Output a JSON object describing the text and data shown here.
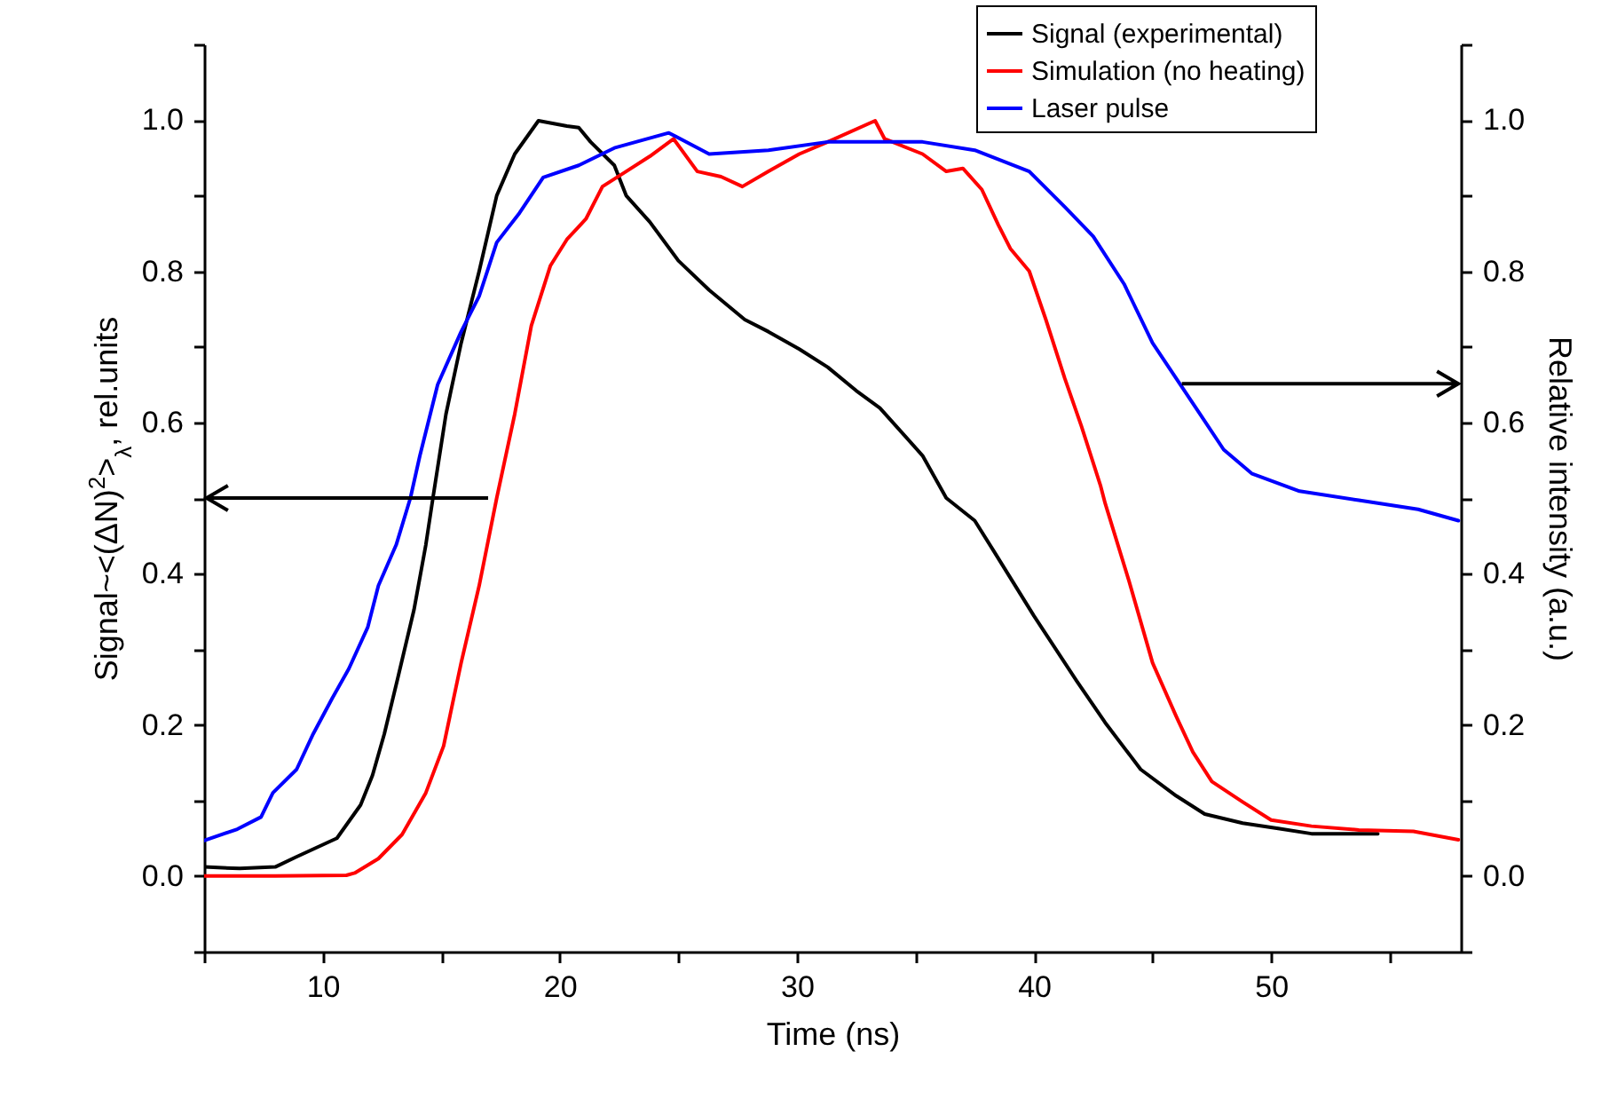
{
  "chart_data": {
    "type": "line",
    "xlabel": "Time (ns)",
    "ylabel": "Signal~<(ΔN)$^{2}$>$_{λ}$, rel.units",
    "y2label": "Relative intensity (a.u.)",
    "xlim": [
      5,
      58
    ],
    "xticks": [
      {
        "value": 5,
        "label": null
      },
      10,
      {
        "value": 15,
        "label": null
      },
      20,
      {
        "value": 25,
        "label": null
      },
      30,
      {
        "value": 35,
        "label": null
      },
      40,
      {
        "value": 45,
        "label": null
      },
      50,
      {
        "value": 55,
        "label": null
      }
    ],
    "ylim": [
      -0.1,
      1.1
    ],
    "yticks": [
      {
        "value": -0.1,
        "label": null
      },
      {
        "value": 0,
        "label": "0.0"
      },
      {
        "value": 0.1,
        "label": null
      },
      {
        "value": 0.2,
        "label": "0.2"
      },
      {
        "value": 0.3,
        "label": null
      },
      {
        "value": 0.4,
        "label": "0.4"
      },
      {
        "value": 0.5,
        "label": null
      },
      {
        "value": 0.6,
        "label": "0.6"
      },
      {
        "value": 0.7,
        "label": null
      },
      {
        "value": 0.8,
        "label": "0.8"
      },
      {
        "value": 0.9,
        "label": null
      },
      {
        "value": 1.0,
        "label": "1.0"
      },
      {
        "value": 1.1,
        "label": null
      }
    ],
    "y2lim": [
      -0.1,
      1.1
    ],
    "y2ticks": [
      {
        "value": -0.1,
        "label": null
      },
      {
        "value": 0,
        "label": "0.0"
      },
      {
        "value": 0.1,
        "label": null
      },
      {
        "value": 0.2,
        "label": "0.2"
      },
      {
        "value": 0.3,
        "label": null
      },
      {
        "value": 0.4,
        "label": "0.4"
      },
      {
        "value": 0.5,
        "label": null
      },
      {
        "value": 0.6,
        "label": "0.6"
      },
      {
        "value": 0.7,
        "label": null
      },
      {
        "value": 0.8,
        "label": "0.8"
      },
      {
        "value": 0.9,
        "label": null
      },
      {
        "value": 1.0,
        "label": "1.0"
      },
      {
        "value": 1.1,
        "label": null
      }
    ],
    "grid": false,
    "legend": "top right",
    "marker": "none",
    "line_style": "solid",
    "series": [
      {
        "name": "Signal (experimental)",
        "color": "#000000",
        "x": [
          5,
          6.5,
          8,
          8.87,
          10.6,
          11.6,
          12.1,
          12.6,
          13.2,
          13.85,
          14.35,
          14.65,
          15.2,
          15.84,
          16.6,
          17.34,
          18.1,
          19.1,
          20.3,
          20.8,
          21.3,
          22.3,
          22.8,
          23.8,
          25.0,
          26.3,
          27.8,
          28.8,
          30.1,
          31.3,
          32.5,
          33.5,
          35.3,
          36.3,
          37.5,
          38.3,
          40.0,
          41.8,
          43.0,
          44.5,
          46.0,
          47.2,
          48.8,
          50.3,
          51.7,
          54.5
        ],
        "values": [
          0.012,
          0.01,
          0.012,
          0.025,
          0.05,
          0.094,
          0.133,
          0.188,
          0.266,
          0.352,
          0.438,
          0.5,
          0.611,
          0.705,
          0.8,
          0.9,
          0.955,
          0.999,
          0.992,
          0.99,
          0.971,
          0.94,
          0.9,
          0.865,
          0.814,
          0.775,
          0.736,
          0.72,
          0.697,
          0.673,
          0.642,
          0.619,
          0.556,
          0.5,
          0.47,
          0.43,
          0.344,
          0.258,
          0.203,
          0.141,
          0.106,
          0.082,
          0.07,
          0.063,
          0.056,
          0.056
        ]
      },
      {
        "name": "Simulation (no heating)",
        "color": "#ff0000",
        "x": [
          5,
          8,
          11,
          11.35,
          12.35,
          13.35,
          14.35,
          15.1,
          15.84,
          16.6,
          17.34,
          18.1,
          18.8,
          19.6,
          20.3,
          21.1,
          21.8,
          22.8,
          23.8,
          24.8,
          25.8,
          26.8,
          27.7,
          28.8,
          30.1,
          31.3,
          33.3,
          33.7,
          35.3,
          36.3,
          37.0,
          37.8,
          38.5,
          39.0,
          39.8,
          40.5,
          41.3,
          42.0,
          42.8,
          43.0,
          44.0,
          45.0,
          46.0,
          46.7,
          47.5,
          48.8,
          50.0,
          51.7,
          53.7,
          56.0,
          57.9
        ],
        "values": [
          0,
          0,
          0.001,
          0.004,
          0.023,
          0.055,
          0.11,
          0.172,
          0.282,
          0.384,
          0.5,
          0.611,
          0.728,
          0.807,
          0.842,
          0.869,
          0.912,
          0.932,
          0.952,
          0.975,
          0.932,
          0.925,
          0.912,
          0.932,
          0.955,
          0.971,
          0.999,
          0.975,
          0.955,
          0.932,
          0.936,
          0.908,
          0.861,
          0.83,
          0.8,
          0.736,
          0.658,
          0.595,
          0.517,
          0.493,
          0.391,
          0.282,
          0.211,
          0.164,
          0.125,
          0.098,
          0.074,
          0.066,
          0.061,
          0.059,
          0.048
        ]
      },
      {
        "name": "Laser pulse",
        "color": "#0000ff",
        "axis": "y2",
        "x": [
          5,
          6.4,
          7.4,
          7.9,
          8.9,
          9.6,
          10.4,
          11.1,
          11.9,
          12.35,
          13.1,
          13.7,
          14.1,
          14.85,
          15.84,
          16.6,
          17.34,
          18.3,
          19.3,
          20.8,
          22.3,
          24.6,
          26.3,
          28.8,
          31.3,
          33.8,
          35.3,
          37.5,
          39.8,
          41.3,
          42.5,
          43.8,
          45.0,
          46.0,
          47.0,
          48.0,
          49.2,
          51.2,
          53.7,
          56.2,
          57.9
        ],
        "values": [
          0.047,
          0.062,
          0.078,
          0.11,
          0.141,
          0.188,
          0.235,
          0.274,
          0.329,
          0.384,
          0.438,
          0.5,
          0.556,
          0.65,
          0.72,
          0.767,
          0.838,
          0.877,
          0.924,
          0.94,
          0.963,
          0.983,
          0.955,
          0.96,
          0.971,
          0.971,
          0.971,
          0.96,
          0.932,
          0.885,
          0.846,
          0.783,
          0.705,
          0.658,
          0.611,
          0.564,
          0.532,
          0.509,
          0.497,
          0.485,
          0.47
        ]
      }
    ]
  }
}
